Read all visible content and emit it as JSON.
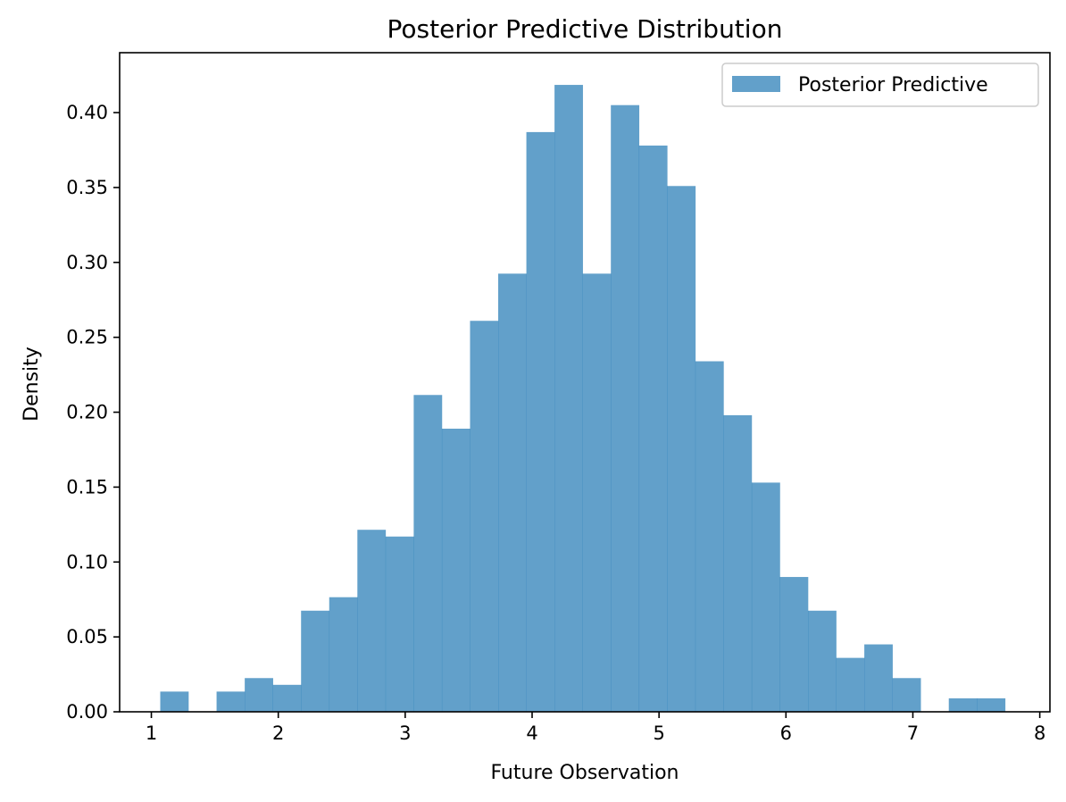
{
  "chart_data": {
    "type": "bar",
    "title": "Posterior Predictive Distribution",
    "xlabel": "Future Observation",
    "ylabel": "Density",
    "xlim": [
      0.75,
      8.08
    ],
    "ylim": [
      0,
      0.44
    ],
    "x_ticks": [
      1,
      2,
      3,
      4,
      5,
      6,
      7,
      8
    ],
    "x_tick_labels": [
      "1",
      "2",
      "3",
      "4",
      "5",
      "6",
      "7",
      "8"
    ],
    "y_ticks": [
      0.0,
      0.05,
      0.1,
      0.15,
      0.2,
      0.25,
      0.3,
      0.35,
      0.4
    ],
    "y_tick_labels": [
      "0.00",
      "0.05",
      "0.10",
      "0.15",
      "0.20",
      "0.25",
      "0.30",
      "0.35",
      "0.40"
    ],
    "grid": false,
    "legend": {
      "position": "top-right",
      "entries": [
        "Posterior Predictive"
      ]
    },
    "series": [
      {
        "name": "Posterior Predictive",
        "color": "#1f77b4",
        "opacity": 0.7,
        "bin_start": 1.07,
        "bin_width": 0.2219,
        "values": [
          0.0135,
          0.0,
          0.0135,
          0.0225,
          0.018,
          0.0675,
          0.0765,
          0.1215,
          0.117,
          0.2115,
          0.189,
          0.261,
          0.2925,
          0.387,
          0.4185,
          0.2925,
          0.405,
          0.378,
          0.351,
          0.234,
          0.198,
          0.153,
          0.09,
          0.0675,
          0.036,
          0.045,
          0.0225,
          0.0,
          0.009,
          0.009
        ]
      }
    ]
  }
}
